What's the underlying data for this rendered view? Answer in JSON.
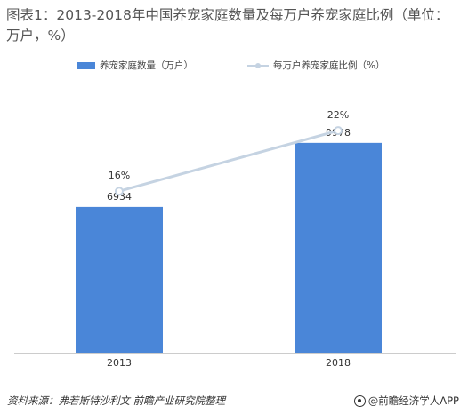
{
  "title": "图表1：2013-2018年中国养宠家庭数量及每万户养宠家庭比例（单位：万户，%）",
  "source": "资料来源：弗若斯特沙利文 前瞻产业研究院整理",
  "brand": "@前瞻经济学人APP",
  "colors": {
    "bar": "#4a86d8",
    "line": "#c5d3e2",
    "marker": "#c5d3e2",
    "axis": "#cccccc"
  },
  "chart_data": {
    "type": "bar",
    "categories": [
      "2013",
      "2018"
    ],
    "series": [
      {
        "name": "养宠家庭数量（万户）",
        "type": "bar",
        "values": [
          6934,
          9978
        ],
        "labels": [
          "6934",
          "9978"
        ]
      },
      {
        "name": "每万户养宠家庭比例（%）",
        "type": "line",
        "values": [
          16,
          22
        ],
        "labels": [
          "16%",
          "22%"
        ]
      }
    ],
    "ylim_bar": [
      0,
      12000
    ],
    "ylim_line": [
      0,
      25
    ],
    "grid": false,
    "legend_position": "top-center"
  }
}
